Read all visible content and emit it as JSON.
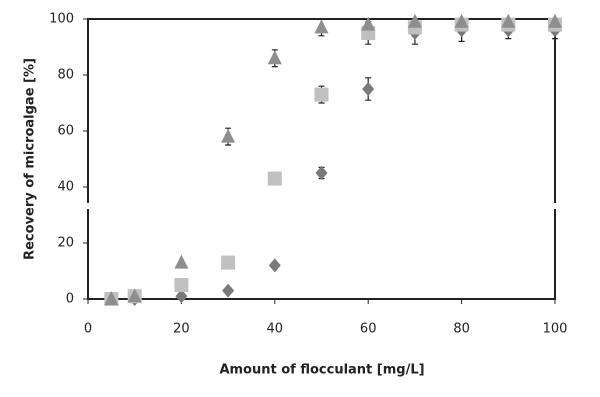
{
  "chart_data": {
    "type": "scatter",
    "xlabel": "Amount of flocculant  [mg/L]",
    "ylabel": "Recovery of microalgae  [%]",
    "x": [
      5,
      10,
      20,
      30,
      40,
      50,
      60,
      70,
      80,
      90,
      100
    ],
    "xlim": [
      0,
      100
    ],
    "xticks": [
      0,
      20,
      40,
      60,
      80,
      100
    ],
    "ylim": [
      0,
      100
    ],
    "yticks": [
      0,
      20,
      40,
      60,
      80,
      100
    ],
    "grid": false,
    "series": [
      {
        "marker": "diamond",
        "color": "#7a7a7a",
        "values": [
          0,
          0,
          1,
          3,
          12,
          45,
          75,
          95,
          96,
          96,
          96
        ],
        "errors": [
          null,
          null,
          null,
          null,
          null,
          2,
          4,
          4,
          4,
          3,
          3
        ]
      },
      {
        "marker": "square",
        "color": "#c0c0c0",
        "values": [
          0,
          1,
          5,
          13,
          43,
          73,
          95,
          97,
          98,
          98,
          98
        ],
        "errors": [
          null,
          null,
          null,
          null,
          null,
          3,
          4,
          null,
          null,
          null,
          null
        ]
      },
      {
        "marker": "triangle",
        "color": "#8e8e8e",
        "values": [
          0,
          1,
          13,
          58,
          86,
          97,
          98,
          99,
          99,
          99,
          99
        ],
        "errors": [
          null,
          null,
          null,
          3,
          3,
          3,
          null,
          null,
          null,
          null,
          null
        ]
      }
    ]
  }
}
